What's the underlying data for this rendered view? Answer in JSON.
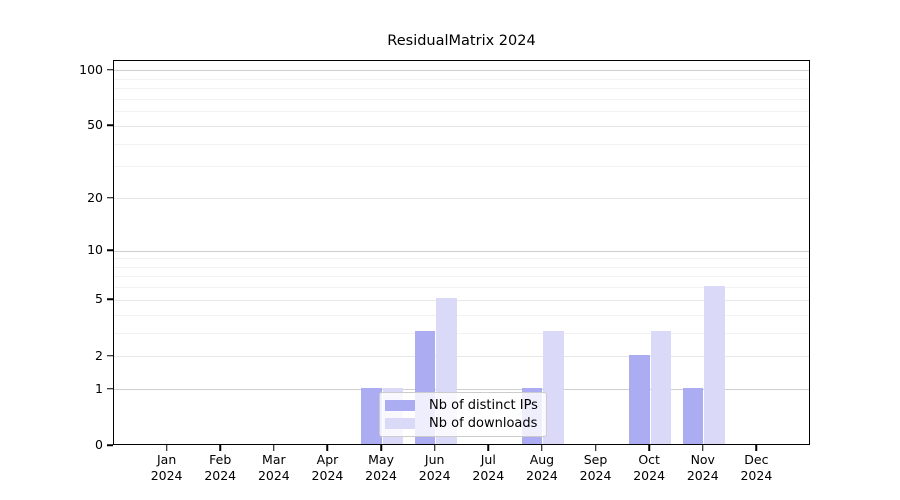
{
  "chart_data": {
    "type": "bar",
    "title": "ResidualMatrix 2024",
    "x_axis": {
      "months": [
        "Jan",
        "Feb",
        "Mar",
        "Apr",
        "May",
        "Jun",
        "Jul",
        "Aug",
        "Sep",
        "Oct",
        "Nov",
        "Dec"
      ],
      "year": "2024"
    },
    "categories": [
      "Jan 2024",
      "Feb 2024",
      "Mar 2024",
      "Apr 2024",
      "May 2024",
      "Jun 2024",
      "Jul 2024",
      "Aug 2024",
      "Sep 2024",
      "Oct 2024",
      "Nov 2024",
      "Dec 2024"
    ],
    "series": [
      {
        "name": "Nb of distinct IPs",
        "color": "#abacf2",
        "values": [
          0,
          0,
          0,
          0,
          1,
          3,
          0,
          1,
          0,
          2,
          1,
          0
        ]
      },
      {
        "name": "Nb of downloads",
        "color": "#dadaf8",
        "values": [
          0,
          0,
          0,
          0,
          1,
          5,
          0,
          3,
          0,
          3,
          6,
          0
        ]
      }
    ],
    "y_axis": {
      "scale": "log10(value+1)",
      "tick_values": [
        0,
        1,
        2,
        5,
        10,
        20,
        50,
        100
      ],
      "minor_gridlines": [
        3,
        4,
        6,
        7,
        8,
        9,
        30,
        40,
        60,
        70,
        80,
        90
      ],
      "ymax": 113
    },
    "legend": {
      "position": "lower-center",
      "entries": [
        "Nb of distinct IPs",
        "Nb of downloads"
      ]
    },
    "grid": true
  }
}
